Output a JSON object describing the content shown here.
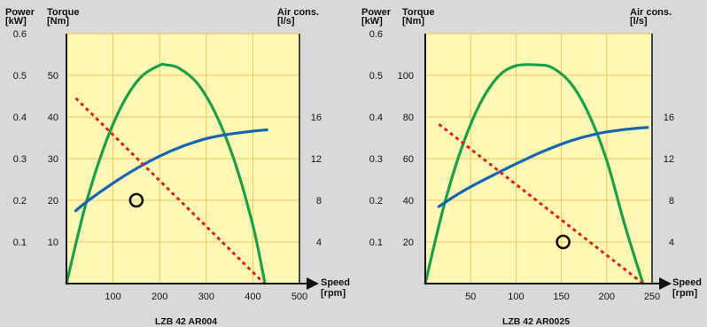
{
  "colors": {
    "background": "#d9d9d9",
    "plot_area": "#fff7b3",
    "grid": "#f2c45a",
    "axis": "#111111",
    "power": "#1aa04a",
    "torque": "#1565b0",
    "air": "#e02020",
    "marker": "#111111"
  },
  "chart_data": [
    {
      "type": "line",
      "title": "LZB 42 AR004",
      "axes": {
        "power_label": [
          "Power",
          "[kW]"
        ],
        "torque_label": [
          "Torque",
          "[Nm]"
        ],
        "air_label": [
          "Air cons.",
          "[l/s]"
        ],
        "speed_label": [
          "Speed",
          "[rpm]"
        ]
      },
      "xlim": [
        0,
        500
      ],
      "power_lim": [
        0,
        0.6
      ],
      "torque_lim": [
        0,
        60
      ],
      "air_lim": [
        0,
        24
      ],
      "x_ticks": [
        100,
        200,
        300,
        400,
        500
      ],
      "power_ticks": [
        0.1,
        0.2,
        0.3,
        0.4,
        0.5,
        0.6
      ],
      "torque_ticks": [
        10,
        20,
        30,
        40,
        50
      ],
      "air_ticks": [
        4,
        8,
        12,
        16
      ],
      "grid_x": [
        100,
        200,
        300,
        400
      ],
      "grid_y": [
        10,
        20,
        30,
        40,
        50,
        60
      ],
      "series": [
        {
          "name": "Power",
          "axis": "power",
          "color": "#1aa04a",
          "style": "solid",
          "x": [
            0,
            40,
            80,
            120,
            160,
            200,
            213,
            240,
            280,
            320,
            360,
            400,
            426
          ],
          "y": [
            0,
            0.184,
            0.326,
            0.43,
            0.496,
            0.524,
            0.525,
            0.518,
            0.482,
            0.408,
            0.296,
            0.14,
            0
          ]
        },
        {
          "name": "Torque",
          "axis": "torque",
          "color": "#1565b0",
          "style": "solid",
          "x": [
            20,
            50,
            100,
            150,
            200,
            250,
            300,
            350,
            400,
            430
          ],
          "y": [
            17.5,
            20.2,
            24.1,
            27.6,
            30.6,
            33.0,
            34.8,
            35.9,
            36.6,
            36.9
          ]
        },
        {
          "name": "Air cons.",
          "axis": "air",
          "color": "#e02020",
          "style": "dashed",
          "x": [
            20,
            425
          ],
          "y": [
            17.8,
            0
          ]
        }
      ],
      "markers": [
        {
          "x": 150,
          "torque": 20
        }
      ]
    },
    {
      "type": "line",
      "title": "LZB 42 AR0025",
      "axes": {
        "power_label": [
          "Power",
          "[kW]"
        ],
        "torque_label": [
          "Torque",
          "[Nm]"
        ],
        "air_label": [
          "Air cons.",
          "[l/s]"
        ],
        "speed_label": [
          "Speed",
          "[rpm]"
        ]
      },
      "xlim": [
        0,
        250
      ],
      "power_lim": [
        0,
        0.6
      ],
      "torque_lim": [
        0,
        120
      ],
      "air_lim": [
        0,
        24
      ],
      "x_ticks": [
        50,
        100,
        150,
        200,
        250
      ],
      "power_ticks": [
        0.1,
        0.2,
        0.3,
        0.4,
        0.5,
        0.6
      ],
      "torque_ticks": [
        20,
        40,
        60,
        80,
        100
      ],
      "air_ticks": [
        4,
        8,
        12,
        16
      ],
      "grid_x": [
        50,
        100,
        150,
        200
      ],
      "grid_y": [
        20,
        40,
        60,
        80,
        100,
        120
      ],
      "series": [
        {
          "name": "Power",
          "axis": "power",
          "color": "#1aa04a",
          "style": "solid",
          "x": [
            0,
            20,
            40,
            60,
            80,
            100,
            124,
            140,
            160,
            180,
            200,
            220,
            240
          ],
          "y": [
            0,
            0.182,
            0.325,
            0.43,
            0.496,
            0.523,
            0.525,
            0.518,
            0.482,
            0.408,
            0.296,
            0.14,
            0
          ]
        },
        {
          "name": "Torque",
          "axis": "torque",
          "color": "#1565b0",
          "style": "solid",
          "x": [
            15,
            40,
            70,
            100,
            130,
            160,
            190,
            220,
            245
          ],
          "y": [
            37,
            44,
            51,
            57.5,
            63.5,
            68.5,
            72,
            74,
            75
          ]
        },
        {
          "name": "Air cons.",
          "axis": "air",
          "color": "#e02020",
          "style": "dashed",
          "x": [
            15,
            240
          ],
          "y": [
            15.3,
            0
          ]
        }
      ],
      "markers": [
        {
          "x": 152,
          "torque": 20
        }
      ]
    }
  ]
}
